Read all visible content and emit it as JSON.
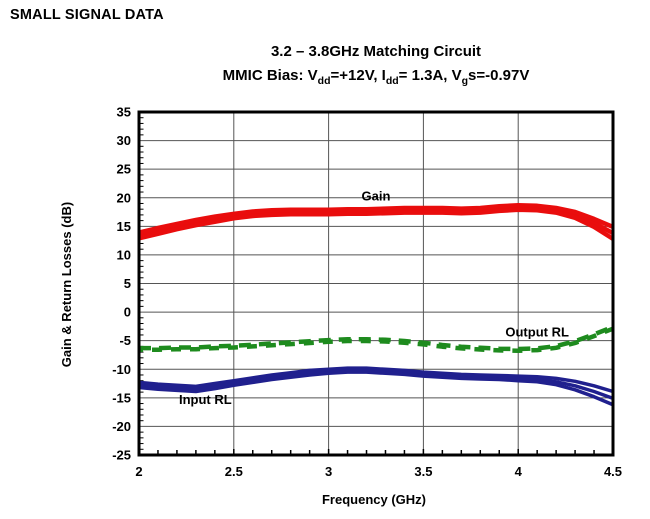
{
  "heading": "SMALL SIGNAL DATA",
  "chart": {
    "subtitle_segments": [
      {
        "text": "MMIC Bias: V"
      },
      {
        "text": "dd",
        "sub": true
      },
      {
        "text": "=+12V, I"
      },
      {
        "text": "dd",
        "sub": true
      },
      {
        "text": "= 1.3A, V"
      },
      {
        "text": "g",
        "sub": true
      },
      {
        "text": "s=-0.97V"
      }
    ]
  },
  "chart_data": {
    "type": "line",
    "title": "3.2 – 3.8GHz Matching Circuit",
    "subtitle": "MMIC Bias: Vdd=+12V, Idd= 1.3A, Vgs=-0.97V",
    "xlabel": "Frequency (GHz)",
    "ylabel": "Gain & Return Losses (dB)",
    "xlim": [
      2,
      4.5
    ],
    "ylim": [
      -25,
      35
    ],
    "grid": true,
    "x_ticks": {
      "values": [
        2,
        2.5,
        3,
        3.5,
        4,
        4.5
      ],
      "labels": [
        "2",
        "2.5",
        "3",
        "3.5",
        "4",
        "4.5"
      ]
    },
    "y_ticks": {
      "values": [
        35,
        30,
        25,
        20,
        15,
        10,
        5,
        0,
        -5,
        -10,
        -15,
        -20,
        -25
      ],
      "labels": [
        "35",
        "30",
        "25",
        "20",
        "15",
        "10",
        "5",
        "0",
        "-5",
        "-10",
        "-15",
        "-20",
        "-25"
      ]
    },
    "x_minor_step": 0.1,
    "y_minor_step": 1,
    "frame_color": "#000000",
    "grid_color": "#555555",
    "x": [
      2.0,
      2.1,
      2.2,
      2.3,
      2.4,
      2.5,
      2.6,
      2.7,
      2.8,
      2.9,
      3.0,
      3.1,
      3.2,
      3.3,
      3.4,
      3.5,
      3.6,
      3.7,
      3.8,
      3.9,
      4.0,
      4.1,
      4.2,
      4.3,
      4.4,
      4.5
    ],
    "series": [
      {
        "name": "Gain",
        "color": "#e90d0d",
        "line_style": "solid",
        "stroke_width": 4.5,
        "label": {
          "text": "Gain",
          "x": 3.25,
          "y": 20.2
        },
        "values": [
          13.4,
          14.2,
          15.0,
          15.7,
          16.3,
          16.8,
          17.2,
          17.4,
          17.5,
          17.5,
          17.5,
          17.6,
          17.6,
          17.7,
          17.8,
          17.8,
          17.8,
          17.7,
          17.8,
          18.1,
          18.3,
          18.2,
          17.8,
          17.0,
          15.6,
          13.8
        ],
        "extra_traces": [
          [
            13.9,
            14.7,
            15.4,
            16.1,
            16.7,
            17.2,
            17.6,
            17.8,
            17.9,
            17.9,
            17.9,
            18.0,
            18.0,
            18.1,
            18.2,
            18.2,
            18.2,
            18.1,
            18.2,
            18.5,
            18.7,
            18.6,
            18.2,
            17.5,
            16.3,
            14.9
          ],
          [
            12.9,
            13.7,
            14.5,
            15.2,
            15.8,
            16.4,
            16.8,
            17.0,
            17.1,
            17.1,
            17.1,
            17.2,
            17.2,
            17.3,
            17.4,
            17.4,
            17.4,
            17.3,
            17.4,
            17.7,
            17.9,
            17.8,
            17.4,
            16.5,
            14.9,
            12.8
          ]
        ]
      },
      {
        "name": "Output RL",
        "color": "#1e8b1e",
        "line_style": "dashed",
        "stroke_width": 4.5,
        "label": {
          "text": "Output RL",
          "x": 4.1,
          "y": -3.6
        },
        "values": [
          -6.3,
          -6.3,
          -6.2,
          -6.2,
          -6.0,
          -5.9,
          -5.7,
          -5.5,
          -5.3,
          -5.1,
          -4.9,
          -4.75,
          -4.75,
          -4.85,
          -5.05,
          -5.35,
          -5.75,
          -6.05,
          -6.25,
          -6.4,
          -6.45,
          -6.35,
          -5.95,
          -5.1,
          -3.9,
          -2.6
        ],
        "extra_traces": [
          [
            -6.6,
            -6.6,
            -6.5,
            -6.5,
            -6.3,
            -6.2,
            -6.0,
            -5.8,
            -5.6,
            -5.4,
            -5.2,
            -5.05,
            -5.05,
            -5.15,
            -5.35,
            -5.65,
            -6.05,
            -6.35,
            -6.55,
            -6.7,
            -6.75,
            -6.65,
            -6.25,
            -5.4,
            -4.2,
            -2.9
          ]
        ]
      },
      {
        "name": "Input RL",
        "color": "#20208e",
        "line_style": "solid",
        "stroke_width": 3.5,
        "label": {
          "text": "Input RL",
          "x": 2.35,
          "y": -15.4
        },
        "values": [
          -12.8,
          -13.1,
          -13.3,
          -13.5,
          -13.0,
          -12.4,
          -11.9,
          -11.4,
          -11.0,
          -10.6,
          -10.4,
          -10.2,
          -10.2,
          -10.4,
          -10.6,
          -10.9,
          -11.1,
          -11.3,
          -11.4,
          -11.5,
          -11.6,
          -11.8,
          -12.2,
          -12.9,
          -13.9,
          -15.1
        ],
        "extra_traces": [
          [
            -12.3,
            -12.6,
            -12.8,
            -13.0,
            -12.5,
            -12.0,
            -11.5,
            -11.0,
            -10.6,
            -10.2,
            -10.0,
            -9.8,
            -9.8,
            -10.0,
            -10.2,
            -10.5,
            -10.7,
            -10.9,
            -11.0,
            -11.1,
            -11.2,
            -11.3,
            -11.6,
            -12.1,
            -12.9,
            -13.9
          ],
          [
            -13.2,
            -13.5,
            -13.7,
            -13.9,
            -13.4,
            -12.8,
            -12.3,
            -11.8,
            -11.4,
            -11.0,
            -10.7,
            -10.5,
            -10.5,
            -10.7,
            -10.9,
            -11.2,
            -11.4,
            -11.6,
            -11.7,
            -11.8,
            -12.0,
            -12.2,
            -12.7,
            -13.6,
            -14.8,
            -16.2
          ]
        ]
      }
    ]
  }
}
